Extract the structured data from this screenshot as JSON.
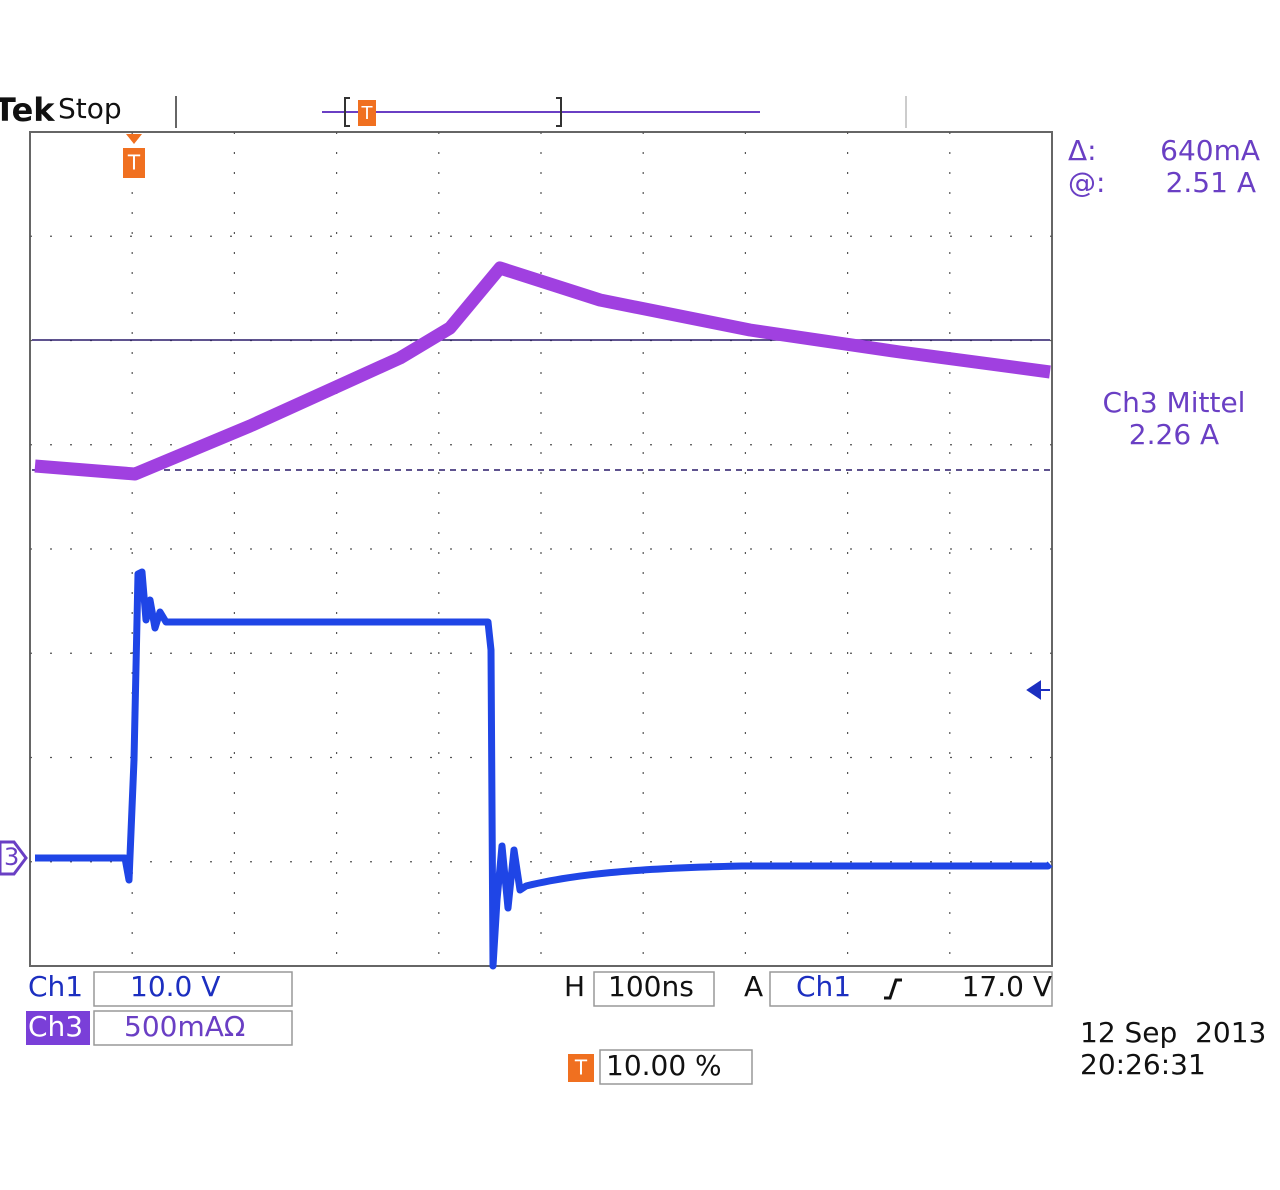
{
  "header": {
    "brand": "Tek",
    "status": "Stop"
  },
  "readout": {
    "delta_label": "Δ:",
    "delta_value": "640mA",
    "at_label": "@:",
    "at_value": "2.51 A",
    "measure_label": "Ch3 Mittel",
    "measure_value": "2.26 A"
  },
  "markers": {
    "trigger": "T",
    "channel": "3"
  },
  "settings": {
    "ch1_label": "Ch1",
    "ch1_scale": "10.0 V",
    "ch3_label": "Ch3",
    "ch3_scale": "500mAΩ",
    "h_label": "H",
    "h_scale": "100ns",
    "a_label": "A",
    "trigger_source": "Ch1",
    "trigger_level": "17.0 V",
    "trigger_position": "10.00 %"
  },
  "timestamp": {
    "date": "12 Sep  2013",
    "time": "20:26:31"
  }
}
